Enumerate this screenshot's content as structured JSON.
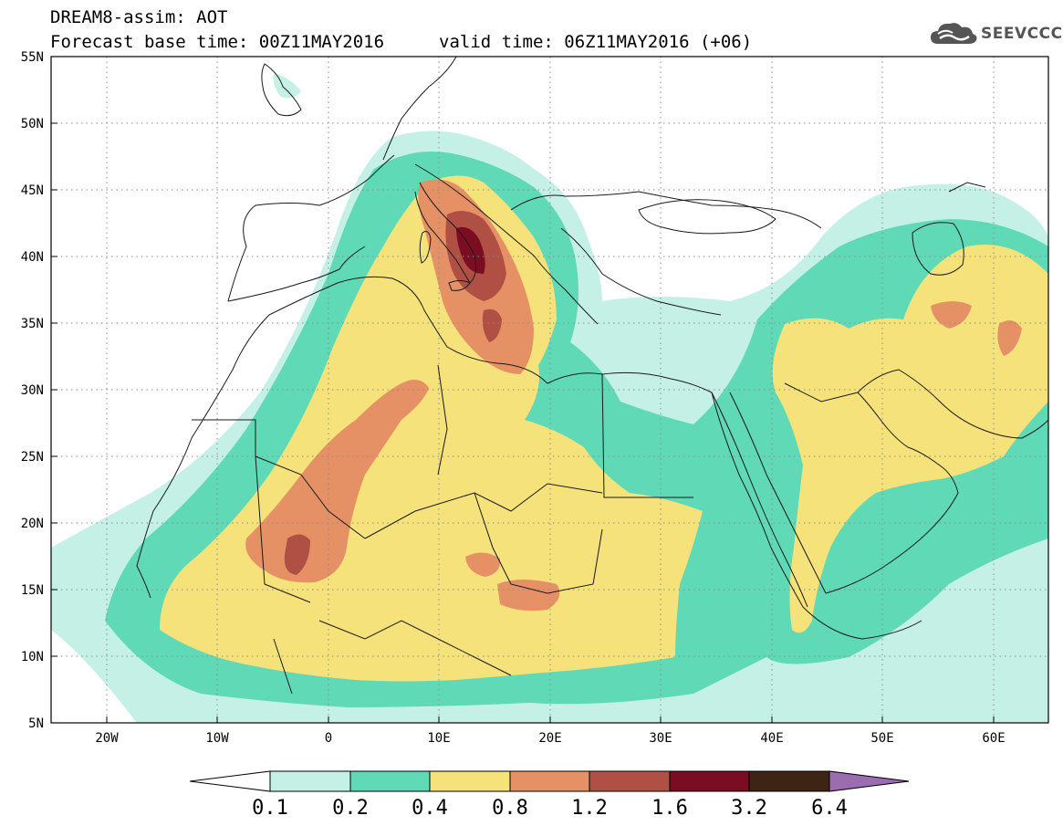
{
  "header": {
    "title": "DREAM8-assim: AOT",
    "base_time": "Forecast base time: 00Z11MAY2016",
    "valid_time": "valid time: 06Z11MAY2016 (+06)"
  },
  "logo": {
    "text": "SEEVCCC",
    "icon": "cloud-icon"
  },
  "map": {
    "variable": "Aerosol optical thickness",
    "lon_range": [
      -25,
      65
    ],
    "lat_range": [
      5,
      55
    ],
    "lat_labels": [
      "5N",
      "10N",
      "15N",
      "20N",
      "25N",
      "30N",
      "35N",
      "40N",
      "45N",
      "50N",
      "55N"
    ],
    "lon_labels": [
      "20W",
      "10W",
      "0",
      "10E",
      "20E",
      "30E",
      "40E",
      "50E",
      "60E"
    ],
    "grid": "dotted"
  },
  "colorbar": {
    "labels": [
      "0.1",
      "0.2",
      "0.4",
      "0.8",
      "1.2",
      "1.6",
      "3.2",
      "6.4"
    ],
    "colors": [
      "#ffffff",
      "#c5f0e6",
      "#5fd9b6",
      "#f5e27a",
      "#e69165",
      "#b04f44",
      "#7a0d22",
      "#3d2415",
      "#9b6cb0"
    ],
    "extend": "both"
  }
}
